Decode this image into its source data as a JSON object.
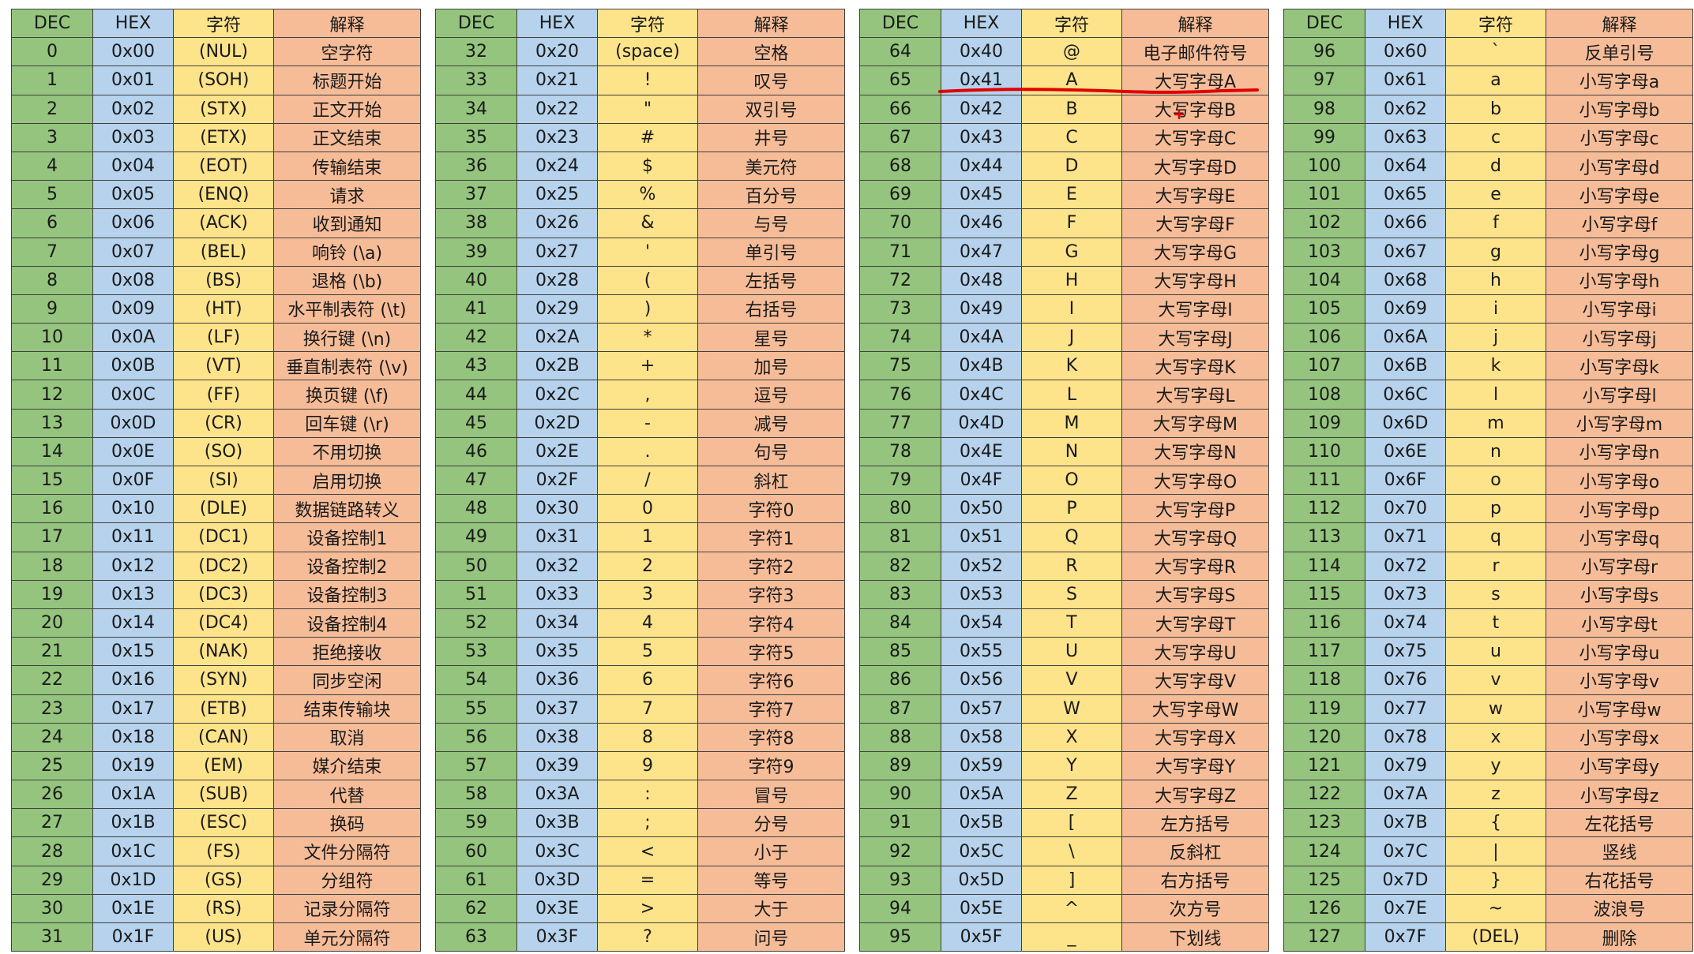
{
  "headers": {
    "dec": "DEC",
    "hex": "HEX",
    "char": "字符",
    "explain": "解释"
  },
  "colors": {
    "dec": "#94c47d",
    "hex": "#b6d2ec",
    "char": "#fde38a",
    "explain": "#f6bc98",
    "annotation": "#e00000"
  },
  "tables": [
    {
      "rows": [
        [
          "0",
          "0x00",
          "(NUL)",
          "空字符"
        ],
        [
          "1",
          "0x01",
          "(SOH)",
          "标题开始"
        ],
        [
          "2",
          "0x02",
          "(STX)",
          "正文开始"
        ],
        [
          "3",
          "0x03",
          "(ETX)",
          "正文结束"
        ],
        [
          "4",
          "0x04",
          "(EOT)",
          "传输结束"
        ],
        [
          "5",
          "0x05",
          "(ENQ)",
          "请求"
        ],
        [
          "6",
          "0x06",
          "(ACK)",
          "收到通知"
        ],
        [
          "7",
          "0x07",
          "(BEL)",
          "响铃 (\\a)"
        ],
        [
          "8",
          "0x08",
          "(BS)",
          "退格 (\\b)"
        ],
        [
          "9",
          "0x09",
          "(HT)",
          "水平制表符 (\\t)"
        ],
        [
          "10",
          "0x0A",
          "(LF)",
          "换行键 (\\n)"
        ],
        [
          "11",
          "0x0B",
          "(VT)",
          "垂直制表符 (\\v)"
        ],
        [
          "12",
          "0x0C",
          "(FF)",
          "换页键 (\\f)"
        ],
        [
          "13",
          "0x0D",
          "(CR)",
          "回车键 (\\r)"
        ],
        [
          "14",
          "0x0E",
          "(SO)",
          "不用切换"
        ],
        [
          "15",
          "0x0F",
          "(SI)",
          "启用切换"
        ],
        [
          "16",
          "0x10",
          "(DLE)",
          "数据链路转义"
        ],
        [
          "17",
          "0x11",
          "(DC1)",
          "设备控制1"
        ],
        [
          "18",
          "0x12",
          "(DC2)",
          "设备控制2"
        ],
        [
          "19",
          "0x13",
          "(DC3)",
          "设备控制3"
        ],
        [
          "20",
          "0x14",
          "(DC4)",
          "设备控制4"
        ],
        [
          "21",
          "0x15",
          "(NAK)",
          "拒绝接收"
        ],
        [
          "22",
          "0x16",
          "(SYN)",
          "同步空闲"
        ],
        [
          "23",
          "0x17",
          "(ETB)",
          "结束传输块"
        ],
        [
          "24",
          "0x18",
          "(CAN)",
          "取消"
        ],
        [
          "25",
          "0x19",
          "(EM)",
          "媒介结束"
        ],
        [
          "26",
          "0x1A",
          "(SUB)",
          "代替"
        ],
        [
          "27",
          "0x1B",
          "(ESC)",
          "换码"
        ],
        [
          "28",
          "0x1C",
          "(FS)",
          "文件分隔符"
        ],
        [
          "29",
          "0x1D",
          "(GS)",
          "分组符"
        ],
        [
          "30",
          "0x1E",
          "(RS)",
          "记录分隔符"
        ],
        [
          "31",
          "0x1F",
          "(US)",
          "单元分隔符"
        ]
      ]
    },
    {
      "rows": [
        [
          "32",
          "0x20",
          "(space)",
          "空格"
        ],
        [
          "33",
          "0x21",
          "!",
          "叹号"
        ],
        [
          "34",
          "0x22",
          "\"",
          "双引号"
        ],
        [
          "35",
          "0x23",
          "#",
          "井号"
        ],
        [
          "36",
          "0x24",
          "$",
          "美元符"
        ],
        [
          "37",
          "0x25",
          "%",
          "百分号"
        ],
        [
          "38",
          "0x26",
          "&",
          "与号"
        ],
        [
          "39",
          "0x27",
          "'",
          "单引号"
        ],
        [
          "40",
          "0x28",
          "(",
          "左括号"
        ],
        [
          "41",
          "0x29",
          ")",
          "右括号"
        ],
        [
          "42",
          "0x2A",
          "*",
          "星号"
        ],
        [
          "43",
          "0x2B",
          "+",
          "加号"
        ],
        [
          "44",
          "0x2C",
          ",",
          "逗号"
        ],
        [
          "45",
          "0x2D",
          "-",
          "减号"
        ],
        [
          "46",
          "0x2E",
          ".",
          "句号"
        ],
        [
          "47",
          "0x2F",
          "/",
          "斜杠"
        ],
        [
          "48",
          "0x30",
          "0",
          "字符0"
        ],
        [
          "49",
          "0x31",
          "1",
          "字符1"
        ],
        [
          "50",
          "0x32",
          "2",
          "字符2"
        ],
        [
          "51",
          "0x33",
          "3",
          "字符3"
        ],
        [
          "52",
          "0x34",
          "4",
          "字符4"
        ],
        [
          "53",
          "0x35",
          "5",
          "字符5"
        ],
        [
          "54",
          "0x36",
          "6",
          "字符6"
        ],
        [
          "55",
          "0x37",
          "7",
          "字符7"
        ],
        [
          "56",
          "0x38",
          "8",
          "字符8"
        ],
        [
          "57",
          "0x39",
          "9",
          "字符9"
        ],
        [
          "58",
          "0x3A",
          ":",
          "冒号"
        ],
        [
          "59",
          "0x3B",
          ";",
          "分号"
        ],
        [
          "60",
          "0x3C",
          "<",
          "小于"
        ],
        [
          "61",
          "0x3D",
          "=",
          "等号"
        ],
        [
          "62",
          "0x3E",
          ">",
          "大于"
        ],
        [
          "63",
          "0x3F",
          "?",
          "问号"
        ]
      ]
    },
    {
      "rows": [
        [
          "64",
          "0x40",
          "@",
          "电子邮件符号"
        ],
        [
          "65",
          "0x41",
          "A",
          "大写字母A"
        ],
        [
          "66",
          "0x42",
          "B",
          "大写字母B"
        ],
        [
          "67",
          "0x43",
          "C",
          "大写字母C"
        ],
        [
          "68",
          "0x44",
          "D",
          "大写字母D"
        ],
        [
          "69",
          "0x45",
          "E",
          "大写字母E"
        ],
        [
          "70",
          "0x46",
          "F",
          "大写字母F"
        ],
        [
          "71",
          "0x47",
          "G",
          "大写字母G"
        ],
        [
          "72",
          "0x48",
          "H",
          "大写字母H"
        ],
        [
          "73",
          "0x49",
          "I",
          "大写字母I"
        ],
        [
          "74",
          "0x4A",
          "J",
          "大写字母J"
        ],
        [
          "75",
          "0x4B",
          "K",
          "大写字母K"
        ],
        [
          "76",
          "0x4C",
          "L",
          "大写字母L"
        ],
        [
          "77",
          "0x4D",
          "M",
          "大写字母M"
        ],
        [
          "78",
          "0x4E",
          "N",
          "大写字母N"
        ],
        [
          "79",
          "0x4F",
          "O",
          "大写字母O"
        ],
        [
          "80",
          "0x50",
          "P",
          "大写字母P"
        ],
        [
          "81",
          "0x51",
          "Q",
          "大写字母Q"
        ],
        [
          "82",
          "0x52",
          "R",
          "大写字母R"
        ],
        [
          "83",
          "0x53",
          "S",
          "大写字母S"
        ],
        [
          "84",
          "0x54",
          "T",
          "大写字母T"
        ],
        [
          "85",
          "0x55",
          "U",
          "大写字母U"
        ],
        [
          "86",
          "0x56",
          "V",
          "大写字母V"
        ],
        [
          "87",
          "0x57",
          "W",
          "大写字母W"
        ],
        [
          "88",
          "0x58",
          "X",
          "大写字母X"
        ],
        [
          "89",
          "0x59",
          "Y",
          "大写字母Y"
        ],
        [
          "90",
          "0x5A",
          "Z",
          "大写字母Z"
        ],
        [
          "91",
          "0x5B",
          "[",
          "左方括号"
        ],
        [
          "92",
          "0x5C",
          "\\",
          "反斜杠"
        ],
        [
          "93",
          "0x5D",
          "]",
          "右方括号"
        ],
        [
          "94",
          "0x5E",
          "^",
          "次方号"
        ],
        [
          "95",
          "0x5F",
          "_",
          "下划线"
        ]
      ]
    },
    {
      "rows": [
        [
          "96",
          "0x60",
          "`",
          "反单引号"
        ],
        [
          "97",
          "0x61",
          "a",
          "小写字母a"
        ],
        [
          "98",
          "0x62",
          "b",
          "小写字母b"
        ],
        [
          "99",
          "0x63",
          "c",
          "小写字母c"
        ],
        [
          "100",
          "0x64",
          "d",
          "小写字母d"
        ],
        [
          "101",
          "0x65",
          "e",
          "小写字母e"
        ],
        [
          "102",
          "0x66",
          "f",
          "小写字母f"
        ],
        [
          "103",
          "0x67",
          "g",
          "小写字母g"
        ],
        [
          "104",
          "0x68",
          "h",
          "小写字母h"
        ],
        [
          "105",
          "0x69",
          "i",
          "小写字母i"
        ],
        [
          "106",
          "0x6A",
          "j",
          "小写字母j"
        ],
        [
          "107",
          "0x6B",
          "k",
          "小写字母k"
        ],
        [
          "108",
          "0x6C",
          "l",
          "小写字母l"
        ],
        [
          "109",
          "0x6D",
          "m",
          "小写字母m"
        ],
        [
          "110",
          "0x6E",
          "n",
          "小写字母n"
        ],
        [
          "111",
          "0x6F",
          "o",
          "小写字母o"
        ],
        [
          "112",
          "0x70",
          "p",
          "小写字母p"
        ],
        [
          "113",
          "0x71",
          "q",
          "小写字母q"
        ],
        [
          "114",
          "0x72",
          "r",
          "小写字母r"
        ],
        [
          "115",
          "0x73",
          "s",
          "小写字母s"
        ],
        [
          "116",
          "0x74",
          "t",
          "小写字母t"
        ],
        [
          "117",
          "0x75",
          "u",
          "小写字母u"
        ],
        [
          "118",
          "0x76",
          "v",
          "小写字母v"
        ],
        [
          "119",
          "0x77",
          "w",
          "小写字母w"
        ],
        [
          "120",
          "0x78",
          "x",
          "小写字母x"
        ],
        [
          "121",
          "0x79",
          "y",
          "小写字母y"
        ],
        [
          "122",
          "0x7A",
          "z",
          "小写字母z"
        ],
        [
          "123",
          "0x7B",
          "{",
          "左花括号"
        ],
        [
          "124",
          "0x7C",
          "|",
          "竖线"
        ],
        [
          "125",
          "0x7D",
          "}",
          "右花括号"
        ],
        [
          "126",
          "0x7E",
          "~",
          "波浪号"
        ],
        [
          "127",
          "0x7F",
          "(DEL)",
          "删除"
        ]
      ]
    }
  ]
}
